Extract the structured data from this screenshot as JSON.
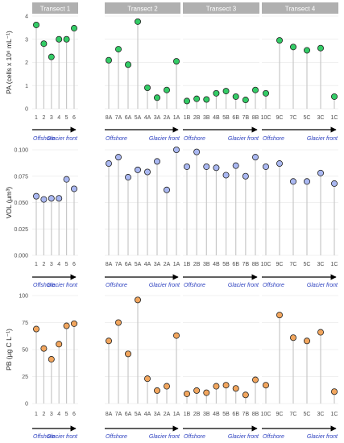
{
  "colors": {
    "strip_bg": "#b0b0b0",
    "strip_text": "#ffffff",
    "panel_bg": "#ffffff",
    "grid": "#ebebeb",
    "stem": "#c8c8c8",
    "point_stroke": "#222222",
    "arrow_text": "#2b3fbf",
    "arrow": "#000000",
    "axis_text": "#4d4d4d",
    "PA": "#33cc66",
    "VOL": "#aab8f2",
    "PB": "#f2a65e"
  },
  "facets": [
    "Transect 1",
    "Transect 2",
    "Transect 3",
    "Transect 4"
  ],
  "arrow_labels": {
    "start": "Offshore",
    "end": "Glacier front"
  },
  "chart_data": [
    {
      "type": "lollipop",
      "metric": "PA",
      "ylabel": "PA  (cells x 10⁶ mL⁻¹)",
      "ylim": [
        0,
        4.2
      ],
      "yticks": [
        "0",
        "1",
        "2",
        "3",
        "4"
      ],
      "grid": true,
      "series": [
        {
          "name": "Transect 1",
          "x": [
            "1",
            "2",
            "3",
            "4",
            "5",
            "6"
          ],
          "values": [
            3.8,
            2.95,
            2.35,
            3.15,
            3.15,
            3.65
          ]
        },
        {
          "name": "Transect 2",
          "x": [
            "8A",
            "7A",
            "6A",
            "5A",
            "4A",
            "3A",
            "2A",
            "1A"
          ],
          "values": [
            2.2,
            2.7,
            2.0,
            3.95,
            0.95,
            0.5,
            0.85,
            2.15
          ]
        },
        {
          "name": "Transect 3",
          "x": [
            "1B",
            "2B",
            "3B",
            "4B",
            "5B",
            "6B",
            "7B",
            "8B"
          ],
          "values": [
            0.35,
            0.45,
            0.42,
            0.7,
            0.8,
            0.55,
            0.4,
            0.85
          ]
        },
        {
          "name": "Transect 4",
          "x": [
            "10C",
            "9C",
            "7C",
            "5C",
            "3C",
            "1C"
          ],
          "values": [
            0.7,
            3.1,
            2.8,
            2.65,
            2.75,
            0.55
          ]
        }
      ]
    },
    {
      "type": "lollipop",
      "metric": "VOL",
      "ylabel": "VOL  (µm³)",
      "ylim": [
        0,
        0.1
      ],
      "yticks": [
        "0.000",
        "0.025",
        "0.050",
        "0.075",
        "0.100"
      ],
      "grid": true,
      "series": [
        {
          "name": "Transect 1",
          "x": [
            "1",
            "2",
            "3",
            "4",
            "5",
            "6"
          ],
          "values": [
            0.056,
            0.053,
            0.054,
            0.054,
            0.072,
            0.063
          ]
        },
        {
          "name": "Transect 2",
          "x": [
            "8A",
            "7A",
            "6A",
            "5A",
            "4A",
            "3A",
            "2A",
            "1A"
          ],
          "values": [
            0.087,
            0.093,
            0.074,
            0.081,
            0.079,
            0.089,
            0.062,
            0.1
          ]
        },
        {
          "name": "Transect 3",
          "x": [
            "1B",
            "2B",
            "3B",
            "4B",
            "5B",
            "6B",
            "7B",
            "8B"
          ],
          "values": [
            0.084,
            0.098,
            0.084,
            0.083,
            0.076,
            0.085,
            0.075,
            0.093
          ]
        },
        {
          "name": "Transect 4",
          "x": [
            "10C",
            "9C",
            "7C",
            "5C",
            "3C",
            "1C"
          ],
          "values": [
            0.084,
            0.087,
            0.07,
            0.07,
            0.078,
            0.068
          ]
        }
      ]
    },
    {
      "type": "lollipop",
      "metric": "PB",
      "ylabel": "PB  (µg C L⁻¹)",
      "ylim": [
        0,
        100
      ],
      "yticks": [
        "0",
        "25",
        "50",
        "75",
        "100"
      ],
      "grid": true,
      "series": [
        {
          "name": "Transect 1",
          "x": [
            "1",
            "2",
            "3",
            "4",
            "5",
            "6"
          ],
          "values": [
            69,
            51,
            41,
            55,
            72,
            74
          ]
        },
        {
          "name": "Transect 2",
          "x": [
            "8A",
            "7A",
            "6A",
            "5A",
            "4A",
            "3A",
            "2A",
            "1A"
          ],
          "values": [
            58,
            75,
            46,
            96,
            23,
            12,
            16,
            63
          ]
        },
        {
          "name": "Transect 3",
          "x": [
            "1B",
            "2B",
            "3B",
            "4B",
            "5B",
            "6B",
            "7B",
            "8B"
          ],
          "values": [
            9,
            12,
            10,
            16,
            17,
            14,
            8,
            22
          ]
        },
        {
          "name": "Transect 4",
          "x": [
            "10C",
            "9C",
            "7C",
            "5C",
            "3C",
            "1C"
          ],
          "values": [
            17,
            82,
            61,
            58,
            66,
            11
          ]
        }
      ]
    }
  ]
}
